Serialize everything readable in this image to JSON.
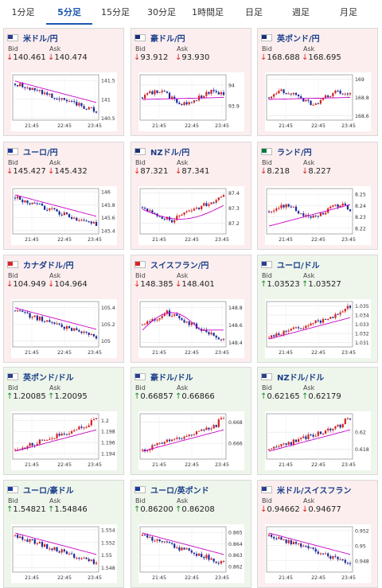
{
  "tabs": [
    "1分足",
    "5分足",
    "15分足",
    "30分足",
    "1時間足",
    "日足",
    "週足",
    "月足"
  ],
  "active_tab": 1,
  "bid_label": "Bid",
  "ask_label": "Ask",
  "colors": {
    "down_bg": "#fceeee",
    "up_bg": "#eef5ea",
    "bull": "#d22222",
    "bear": "#1a2a9a",
    "ma": "#c800c8",
    "up_arrow": "#1a8a2a",
    "down_arrow": "#dd2222"
  },
  "cards": [
    {
      "pair": "米ドル/円",
      "flag": "us",
      "dir": "down",
      "bid": "140.461",
      "ask": "140.474",
      "chart_data": {
        "type": "candlestick",
        "x_ticks": [
          "21:45",
          "22:45",
          "23:45"
        ],
        "y_ticks": [
          "141.5",
          "141",
          "140.5"
        ],
        "ylim": [
          140.45,
          141.65
        ],
        "trend": "down",
        "ma": "down"
      }
    },
    {
      "pair": "豪ドル/円",
      "flag": "au",
      "dir": "down",
      "bid": "93.912",
      "ask": "93.930",
      "chart_data": {
        "type": "candlestick",
        "x_ticks": [
          "21:45",
          "22:45",
          "23:45"
        ],
        "y_ticks": [
          "94",
          "93.9"
        ],
        "ylim": [
          93.83,
          94.05
        ],
        "trend": "flat",
        "ma": "flat"
      }
    },
    {
      "pair": "英ポンド/円",
      "flag": "gb",
      "dir": "down",
      "bid": "168.688",
      "ask": "168.695",
      "chart_data": {
        "type": "candlestick",
        "x_ticks": [
          "21:45",
          "22:45",
          "23:45"
        ],
        "y_ticks": [
          "169",
          "168.8",
          "168.6"
        ],
        "ylim": [
          168.55,
          169.05
        ],
        "trend": "flat",
        "ma": "flat"
      }
    },
    {
      "pair": "ユーロ/円",
      "flag": "eu",
      "dir": "down",
      "bid": "145.427",
      "ask": "145.432",
      "chart_data": {
        "type": "candlestick",
        "x_ticks": [
          "21:45",
          "22:45",
          "23:45"
        ],
        "y_ticks": [
          "146",
          "145.8",
          "145.6",
          "145.4"
        ],
        "ylim": [
          145.35,
          146.05
        ],
        "trend": "down",
        "ma": "down"
      }
    },
    {
      "pair": "NZドル/円",
      "flag": "nz",
      "dir": "down",
      "bid": "87.321",
      "ask": "87.341",
      "chart_data": {
        "type": "candlestick",
        "x_ticks": [
          "21:45",
          "22:45",
          "23:45"
        ],
        "y_ticks": [
          "87.4",
          "87.3",
          "87.2"
        ],
        "ylim": [
          87.13,
          87.43
        ],
        "trend": "vshape",
        "ma": "vshape"
      }
    },
    {
      "pair": "ランド/円",
      "flag": "za",
      "dir": "down",
      "bid": "8.218",
      "ask": "8.227",
      "chart_data": {
        "type": "candlestick",
        "x_ticks": [
          "21:45",
          "22:45",
          "23:45"
        ],
        "y_ticks": [
          "8.25",
          "8.24",
          "8.23",
          "8.22"
        ],
        "ylim": [
          8.215,
          8.255
        ],
        "trend": "flat",
        "ma": "up"
      }
    },
    {
      "pair": "カナダドル/円",
      "flag": "ca",
      "dir": "down",
      "bid": "104.949",
      "ask": "104.964",
      "chart_data": {
        "type": "candlestick",
        "x_ticks": [
          "21:45",
          "22:45",
          "23:45"
        ],
        "y_ticks": [
          "105.4",
          "105.2",
          "105"
        ],
        "ylim": [
          104.93,
          105.47
        ],
        "trend": "down",
        "ma": "down"
      }
    },
    {
      "pair": "スイスフラン/円",
      "flag": "ch",
      "dir": "down",
      "bid": "148.385",
      "ask": "148.401",
      "chart_data": {
        "type": "candlestick",
        "x_ticks": [
          "21:45",
          "22:45",
          "23:45"
        ],
        "y_ticks": [
          "148.8",
          "148.6",
          "148.4"
        ],
        "ylim": [
          148.35,
          148.87
        ],
        "trend": "peakdown",
        "ma": "peak"
      }
    },
    {
      "pair": "ユーロ/ドル",
      "flag": "us",
      "dir": "up",
      "bid": "1.03523",
      "ask": "1.03527",
      "chart_data": {
        "type": "candlestick",
        "x_ticks": [
          "21:45",
          "22:45",
          "23:45"
        ],
        "y_ticks": [
          "1.035",
          "1.034",
          "1.033",
          "1.032",
          "1.031"
        ],
        "ylim": [
          1.0305,
          1.0355
        ],
        "trend": "up",
        "ma": "up"
      }
    },
    {
      "pair": "英ポンド/ドル",
      "flag": "us",
      "dir": "up",
      "bid": "1.20085",
      "ask": "1.20095",
      "chart_data": {
        "type": "candlestick",
        "x_ticks": [
          "21:45",
          "22:45",
          "23:45"
        ],
        "y_ticks": [
          "1.2",
          "1.198",
          "1.196",
          "1.194"
        ],
        "ylim": [
          1.193,
          1.2012
        ],
        "trend": "up",
        "ma": "up"
      }
    },
    {
      "pair": "豪ドル/ドル",
      "flag": "us",
      "dir": "up",
      "bid": "0.66857",
      "ask": "0.66866",
      "chart_data": {
        "type": "candlestick",
        "x_ticks": [
          "21:45",
          "22:45",
          "23:45"
        ],
        "y_ticks": [
          "0.668",
          "0.666"
        ],
        "ylim": [
          0.6645,
          0.6688
        ],
        "trend": "up",
        "ma": "up"
      }
    },
    {
      "pair": "NZドル/ドル",
      "flag": "us",
      "dir": "up",
      "bid": "0.62165",
      "ask": "0.62179",
      "chart_data": {
        "type": "candlestick",
        "x_ticks": [
          "21:45",
          "22:45",
          "23:45"
        ],
        "y_ticks": [
          "0.62",
          "0.618"
        ],
        "ylim": [
          0.6168,
          0.6222
        ],
        "trend": "up",
        "ma": "up"
      }
    },
    {
      "pair": "ユーロ/豪ドル",
      "flag": "eu",
      "dir": "up",
      "bid": "1.54821",
      "ask": "1.54846",
      "chart_data": {
        "type": "candlestick",
        "x_ticks": [
          "21:45",
          "22:45",
          "23:45"
        ],
        "y_ticks": [
          "1.554",
          "1.552",
          "1.55",
          "1.548"
        ],
        "ylim": [
          1.5473,
          1.5545
        ],
        "trend": "down",
        "ma": "down"
      }
    },
    {
      "pair": "ユーロ/英ポンド",
      "flag": "eu",
      "dir": "up",
      "bid": "0.86200",
      "ask": "0.86208",
      "chart_data": {
        "type": "candlestick",
        "x_ticks": [
          "21:45",
          "22:45",
          "23:45"
        ],
        "y_ticks": [
          "0.865",
          "0.864",
          "0.863",
          "0.862"
        ],
        "ylim": [
          0.8615,
          0.8655
        ],
        "trend": "down",
        "ma": "down"
      }
    },
    {
      "pair": "米ドル/スイスフラン",
      "flag": "us",
      "dir": "down",
      "bid": "0.94662",
      "ask": "0.94677",
      "chart_data": {
        "type": "candlestick",
        "x_ticks": [
          "21:45",
          "22:45",
          "23:45"
        ],
        "y_ticks": [
          "0.952",
          "0.95",
          "0.948"
        ],
        "ylim": [
          0.9465,
          0.9525
        ],
        "trend": "down",
        "ma": "down"
      }
    }
  ]
}
